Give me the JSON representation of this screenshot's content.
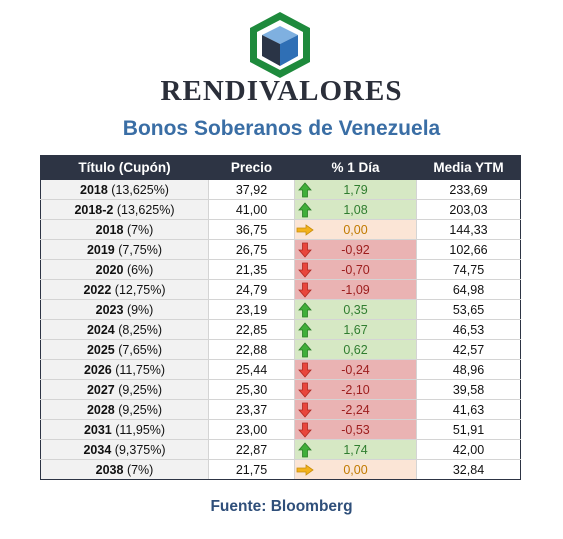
{
  "brand": "RENDIVALORES",
  "title": "Bonos Soberanos de Venezuela",
  "headers": [
    "Título (Cupón)",
    "Precio",
    "% 1 Día",
    "Media YTM"
  ],
  "rows": [
    {
      "year": "2018",
      "coupon": "(13,625%)",
      "price": "37,92",
      "change": "1,79",
      "dir": "up",
      "ytm": "233,69"
    },
    {
      "year": "2018-2",
      "coupon": "(13,625%)",
      "price": "41,00",
      "change": "1,08",
      "dir": "up",
      "ytm": "203,03"
    },
    {
      "year": "2018",
      "coupon": "(7%)",
      "price": "36,75",
      "change": "0,00",
      "dir": "flat",
      "ytm": "144,33"
    },
    {
      "year": "2019",
      "coupon": "(7,75%)",
      "price": "26,75",
      "change": "-0,92",
      "dir": "down",
      "ytm": "102,66"
    },
    {
      "year": "2020",
      "coupon": "(6%)",
      "price": "21,35",
      "change": "-0,70",
      "dir": "down",
      "ytm": "74,75"
    },
    {
      "year": "2022",
      "coupon": "(12,75%)",
      "price": "24,79",
      "change": "-1,09",
      "dir": "down",
      "ytm": "64,98"
    },
    {
      "year": "2023",
      "coupon": "(9%)",
      "price": "23,19",
      "change": "0,35",
      "dir": "up",
      "ytm": "53,65"
    },
    {
      "year": "2024",
      "coupon": "(8,25%)",
      "price": "22,85",
      "change": "1,67",
      "dir": "up",
      "ytm": "46,53"
    },
    {
      "year": "2025",
      "coupon": "(7,65%)",
      "price": "22,88",
      "change": "0,62",
      "dir": "up",
      "ytm": "42,57"
    },
    {
      "year": "2026",
      "coupon": "(11,75%)",
      "price": "25,44",
      "change": "-0,24",
      "dir": "down",
      "ytm": "48,96"
    },
    {
      "year": "2027",
      "coupon": "(9,25%)",
      "price": "25,30",
      "change": "-2,10",
      "dir": "down",
      "ytm": "39,58"
    },
    {
      "year": "2028",
      "coupon": "(9,25%)",
      "price": "23,37",
      "change": "-2,24",
      "dir": "down",
      "ytm": "41,63"
    },
    {
      "year": "2031",
      "coupon": "(11,95%)",
      "price": "23,00",
      "change": "-0,53",
      "dir": "down",
      "ytm": "51,91"
    },
    {
      "year": "2034",
      "coupon": "(9,375%)",
      "price": "22,87",
      "change": "1,74",
      "dir": "up",
      "ytm": "42,00"
    },
    {
      "year": "2038",
      "coupon": "(7%)",
      "price": "21,75",
      "change": "0,00",
      "dir": "flat",
      "ytm": "32,84"
    }
  ],
  "source": "Fuente: Bloomberg",
  "colors": {
    "header_bg": "#2d3444",
    "title": "#3a6ea5",
    "up_bg": "#d6e8c4",
    "down_bg": "#eab3b3",
    "flat_bg": "#fbe5d6",
    "arrow_up": "#3fae3a",
    "arrow_down": "#e8463c",
    "arrow_flat": "#f3b21c",
    "logo_green": "#1e8a3c",
    "logo_blue": "#2f6fb5"
  },
  "icons": {
    "up": "arrow-up-icon",
    "down": "arrow-down-icon",
    "flat": "arrow-right-icon",
    "logo": "cube-logo-icon"
  }
}
